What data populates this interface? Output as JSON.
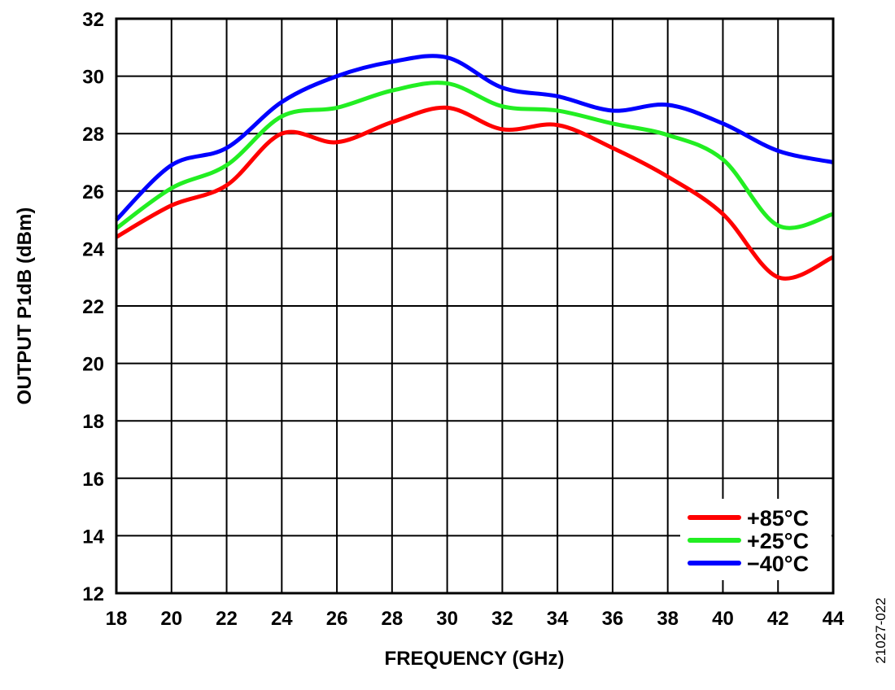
{
  "chart_data": {
    "type": "line",
    "title": "",
    "xlabel": "FREQUENCY (GHz)",
    "ylabel": "OUTPUT P1dB (dBm)",
    "xlim": [
      18,
      44
    ],
    "ylim": [
      12,
      32
    ],
    "xticks": [
      "18",
      "20",
      "22",
      "24",
      "26",
      "28",
      "30",
      "32",
      "34",
      "36",
      "38",
      "40",
      "42",
      "44"
    ],
    "yticks": [
      "12",
      "14",
      "16",
      "18",
      "20",
      "22",
      "24",
      "26",
      "28",
      "30",
      "32"
    ],
    "grid": true,
    "legend_position": "bottom-right",
    "figure_id": "21027-022",
    "x": [
      18,
      20,
      22,
      24,
      26,
      28,
      30,
      32,
      34,
      36,
      38,
      40,
      42,
      44
    ],
    "series": [
      {
        "name": "+85°C",
        "color": "#ff0000",
        "values": [
          24.4,
          25.5,
          26.2,
          28.0,
          27.7,
          28.4,
          28.9,
          28.15,
          28.3,
          27.5,
          26.5,
          25.2,
          23.0,
          23.7
        ]
      },
      {
        "name": "+25°C",
        "color": "#22ee22",
        "values": [
          24.7,
          26.1,
          26.9,
          28.6,
          28.9,
          29.5,
          29.75,
          28.95,
          28.8,
          28.35,
          27.95,
          27.1,
          24.8,
          25.2
        ]
      },
      {
        "name": "−40°C",
        "color": "#0000ff",
        "values": [
          25.0,
          26.9,
          27.5,
          29.1,
          30.0,
          30.5,
          30.65,
          29.6,
          29.3,
          28.8,
          29.0,
          28.35,
          27.4,
          27.0
        ]
      }
    ]
  }
}
